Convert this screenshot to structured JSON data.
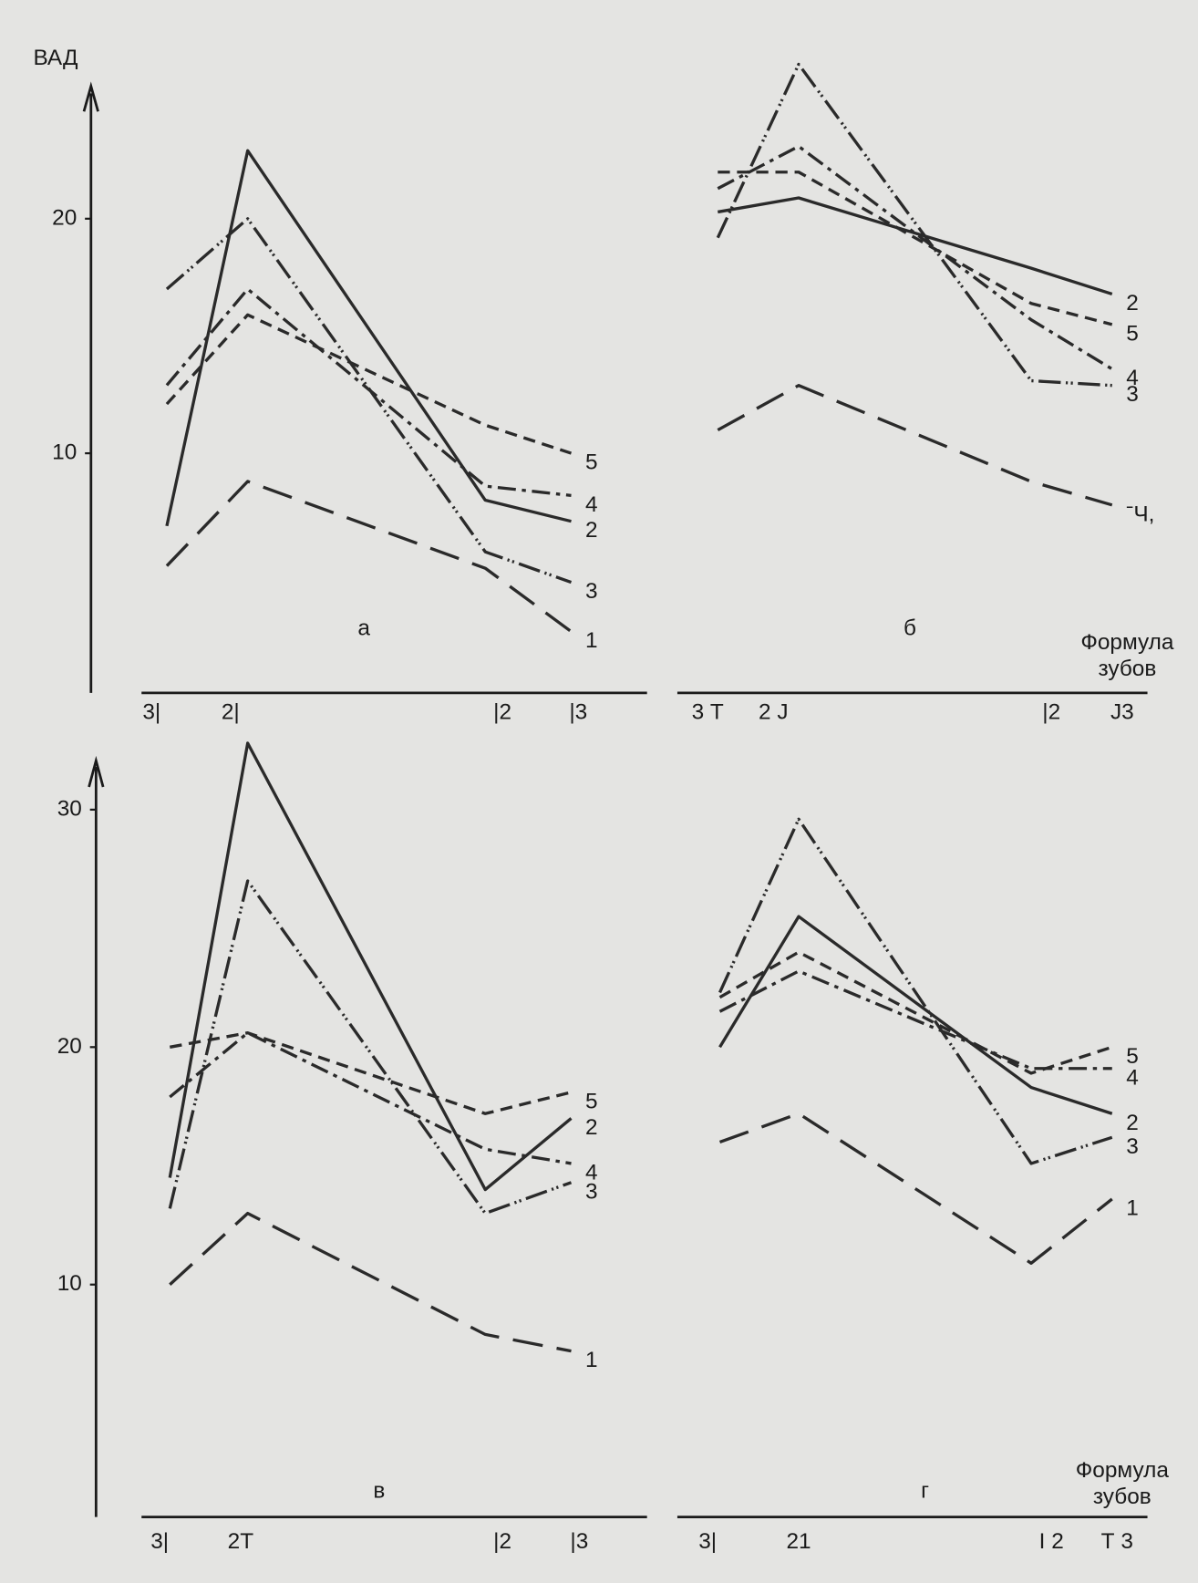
{
  "chart_data": [
    {
      "type": "line",
      "panel_label": "а",
      "ylabel": "ВАД",
      "categories": [
        "3|",
        "2|",
        "|2",
        "|3"
      ],
      "ylim": [
        0,
        25
      ],
      "yticks": [
        10,
        20
      ],
      "series": [
        {
          "name": "1",
          "color": "#2a2a2a",
          "style": "long-dash",
          "values": [
            5.2,
            8.8,
            5.1,
            2.4
          ]
        },
        {
          "name": "2",
          "color": "#2a2a2a",
          "style": "solid",
          "values": [
            6.9,
            22.9,
            8.0,
            7.1
          ]
        },
        {
          "name": "3",
          "color": "#2a2a2a",
          "style": "double-tick",
          "values": [
            17.0,
            20.0,
            5.8,
            4.5
          ]
        },
        {
          "name": "4",
          "color": "#2a2a2a",
          "style": "dash-dot",
          "values": [
            12.9,
            17.0,
            8.6,
            8.2
          ]
        },
        {
          "name": "5",
          "color": "#2a2a2a",
          "style": "dashed",
          "values": [
            12.1,
            15.9,
            11.2,
            10.0
          ]
        }
      ]
    },
    {
      "type": "line",
      "panel_label": "б",
      "xlabel": [
        "Формула",
        "зубов"
      ],
      "categories": [
        "3 Т",
        "2 J",
        "|2",
        "J3"
      ],
      "ylim": [
        0,
        27
      ],
      "yticks": [],
      "series": [
        {
          "name": "ˉЧ,",
          "color": "#2a2a2a",
          "style": "long-dash",
          "values": [
            11.0,
            12.9,
            8.8,
            7.8
          ]
        },
        {
          "name": "2",
          "color": "#2a2a2a",
          "style": "solid",
          "values": [
            20.3,
            20.9,
            17.9,
            16.8
          ]
        },
        {
          "name": "3",
          "color": "#2a2a2a",
          "style": "double-tick",
          "values": [
            19.2,
            26.6,
            13.1,
            12.9
          ]
        },
        {
          "name": "4",
          "color": "#2a2a2a",
          "style": "dash-dot",
          "values": [
            21.3,
            23.1,
            15.7,
            13.6
          ]
        },
        {
          "name": "5",
          "color": "#2a2a2a",
          "style": "dashed",
          "values": [
            22.0,
            22.0,
            16.4,
            15.5
          ]
        }
      ]
    },
    {
      "type": "line",
      "panel_label": "в",
      "categories": [
        "3|",
        "2Т",
        "|2",
        "|3"
      ],
      "ylim": [
        0,
        33
      ],
      "yticks": [
        10,
        20,
        30
      ],
      "series": [
        {
          "name": "1",
          "color": "#2a2a2a",
          "style": "long-dash",
          "values": [
            10.0,
            13.0,
            7.9,
            7.2
          ]
        },
        {
          "name": "2",
          "color": "#2a2a2a",
          "style": "solid",
          "values": [
            14.5,
            32.8,
            14.0,
            17.0
          ]
        },
        {
          "name": "3",
          "color": "#2a2a2a",
          "style": "double-tick",
          "values": [
            13.2,
            27.0,
            13.0,
            14.3
          ]
        },
        {
          "name": "4",
          "color": "#2a2a2a",
          "style": "dash-dot",
          "values": [
            17.9,
            20.6,
            15.7,
            15.1
          ]
        },
        {
          "name": "5",
          "color": "#2a2a2a",
          "style": "dashed",
          "values": [
            20.0,
            20.6,
            17.2,
            18.1
          ]
        }
      ]
    },
    {
      "type": "line",
      "panel_label": "г",
      "xlabel": [
        "Формула",
        "зубов"
      ],
      "categories": [
        "3|",
        "21",
        "I 2",
        "Т 3"
      ],
      "ylim": [
        0,
        33
      ],
      "yticks": [],
      "series": [
        {
          "name": "1",
          "color": "#2a2a2a",
          "style": "long-dash",
          "values": [
            16.0,
            17.2,
            10.9,
            13.6
          ]
        },
        {
          "name": "2",
          "color": "#2a2a2a",
          "style": "solid",
          "values": [
            20.0,
            25.5,
            18.3,
            17.2
          ]
        },
        {
          "name": "3",
          "color": "#2a2a2a",
          "style": "double-tick",
          "values": [
            22.3,
            29.6,
            15.1,
            16.2
          ]
        },
        {
          "name": "4",
          "color": "#2a2a2a",
          "style": "dash-dot",
          "values": [
            21.5,
            23.2,
            19.1,
            19.1
          ]
        },
        {
          "name": "5",
          "color": "#2a2a2a",
          "style": "dashed",
          "values": [
            22.1,
            24.0,
            18.9,
            20.0
          ]
        }
      ]
    }
  ]
}
